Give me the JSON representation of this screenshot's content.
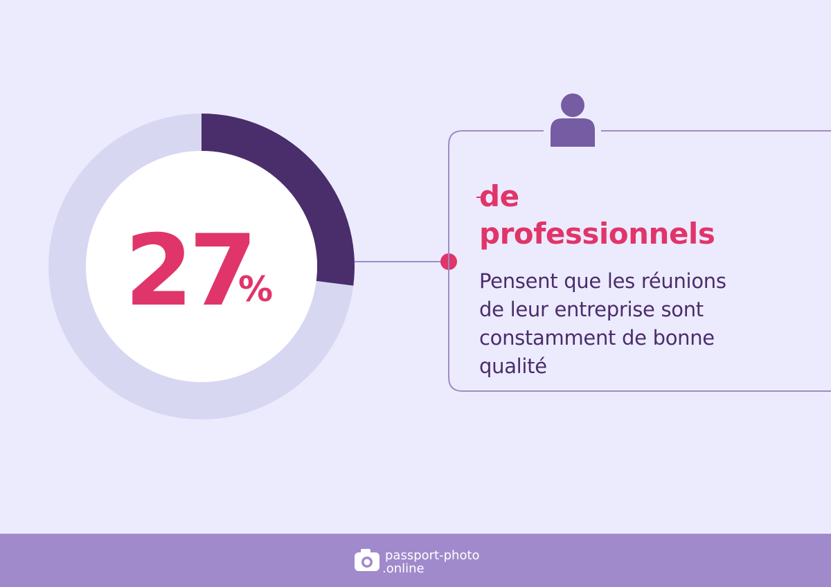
{
  "chart_data": {
    "type": "donut",
    "value": 27,
    "unit": "%",
    "ylim": [
      0,
      100
    ],
    "color": "#4a2d6b",
    "track_color": "#d8d7f2",
    "heading_lines": [
      "de",
      "professionnels"
    ],
    "description_lines": [
      "Pensent que les réunions",
      "de leur entreprise sont",
      "constamment de bonne",
      "qualité"
    ]
  },
  "footer": {
    "brand_line_1": "passport-photo",
    "brand_line_2": ".online"
  }
}
